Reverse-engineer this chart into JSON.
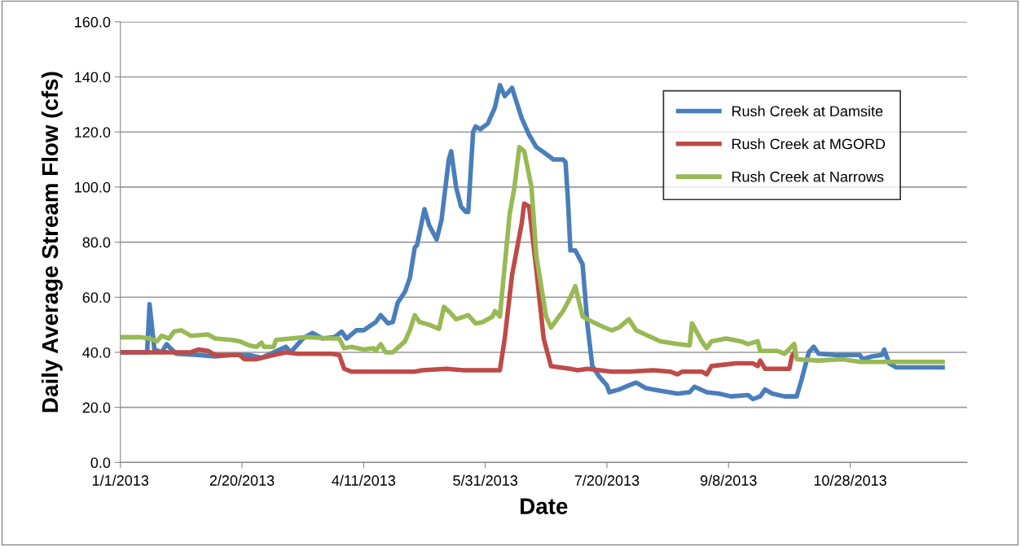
{
  "chart_data": {
    "type": "line",
    "xlabel": "Date",
    "ylabel": "Daily Average Stream Flow (cfs)",
    "xlim": [
      "2013-01-01",
      "2013-12-15"
    ],
    "xticks": [
      {
        "value": "2013-01-01",
        "label": "1/1/2013"
      },
      {
        "value": "2013-02-20",
        "label": "2/20/2013"
      },
      {
        "value": "2013-04-11",
        "label": "4/11/2013"
      },
      {
        "value": "2013-05-31",
        "label": "5/31/2013"
      },
      {
        "value": "2013-07-20",
        "label": "7/20/2013"
      },
      {
        "value": "2013-09-08",
        "label": "9/8/2013"
      },
      {
        "value": "2013-10-28",
        "label": "10/28/2013"
      }
    ],
    "ylim": [
      0,
      160
    ],
    "yticks": [
      {
        "value": 0,
        "label": "0.0"
      },
      {
        "value": 20,
        "label": "20.0"
      },
      {
        "value": 40,
        "label": "40.0"
      },
      {
        "value": 60,
        "label": "60.0"
      },
      {
        "value": 80,
        "label": "80.0"
      },
      {
        "value": 100,
        "label": "100.0"
      },
      {
        "value": 120,
        "label": "120.0"
      },
      {
        "value": 140,
        "label": "140.0"
      },
      {
        "value": 160,
        "label": "160.0"
      }
    ],
    "grid": "y",
    "legend": "top right",
    "marker": "none",
    "line_style": "solid",
    "series": [
      {
        "name": "Rush Creek at Damsite",
        "color": "#4a7ebb",
        "x": [
          "2013-01-01",
          "2013-01-12",
          "2013-01-13",
          "2013-01-15",
          "2013-01-18",
          "2013-01-20",
          "2013-01-21",
          "2013-01-24",
          "2013-02-02",
          "2013-02-09",
          "2013-02-16",
          "2013-02-23",
          "2013-02-28",
          "2013-03-05",
          "2013-03-10",
          "2013-03-12",
          "2013-03-17",
          "2013-03-21",
          "2013-03-25",
          "2013-03-30",
          "2013-04-02",
          "2013-04-04",
          "2013-04-08",
          "2013-04-11",
          "2013-04-16",
          "2013-04-18",
          "2013-04-21",
          "2013-04-23",
          "2013-04-25",
          "2013-04-28",
          "2013-04-30",
          "2013-05-02",
          "2013-05-03",
          "2013-05-06",
          "2013-05-08",
          "2013-05-11",
          "2013-05-13",
          "2013-05-16",
          "2013-05-17",
          "2013-05-19",
          "2013-05-21",
          "2013-05-23",
          "2013-05-24",
          "2013-05-26",
          "2013-05-27",
          "2013-05-29",
          "2013-06-01",
          "2013-06-04",
          "2013-06-06",
          "2013-06-08",
          "2013-06-11",
          "2013-06-15",
          "2013-06-18",
          "2013-06-21",
          "2013-06-25",
          "2013-06-28",
          "2013-07-02",
          "2013-07-03",
          "2013-07-04",
          "2013-07-05",
          "2013-07-07",
          "2013-07-10",
          "2013-07-12",
          "2013-07-14",
          "2013-07-17",
          "2013-07-20",
          "2013-07-21",
          "2013-07-25",
          "2013-07-29",
          "2013-08-01",
          "2013-08-05",
          "2013-08-11",
          "2013-08-18",
          "2013-08-23",
          "2013-08-25",
          "2013-08-30",
          "2013-09-04",
          "2013-09-09",
          "2013-09-16",
          "2013-09-18",
          "2013-09-21",
          "2013-09-23",
          "2013-09-26",
          "2013-10-01",
          "2013-10-06",
          "2013-10-08",
          "2013-10-11",
          "2013-10-13",
          "2013-10-15",
          "2013-10-22",
          "2013-11-01",
          "2013-11-02",
          "2013-11-06",
          "2013-11-10",
          "2013-11-11",
          "2013-11-13",
          "2013-11-16",
          "2013-11-25",
          "2013-12-05"
        ],
        "values": [
          40,
          40,
          57.5,
          41,
          40,
          43,
          42,
          39.5,
          39,
          38.5,
          39,
          39,
          38,
          40,
          42,
          40,
          45,
          47,
          45,
          45.5,
          47.5,
          45,
          48,
          48,
          51,
          53.5,
          50.5,
          51,
          58,
          62,
          67,
          78,
          79,
          92,
          86,
          81,
          88,
          110,
          113,
          100,
          93,
          91,
          91,
          120,
          122,
          121,
          123,
          129,
          137,
          133,
          136,
          125,
          119,
          114.5,
          112,
          110,
          110,
          109,
          95,
          77,
          77,
          72,
          50,
          35,
          31,
          28,
          25.5,
          26.5,
          28,
          29,
          27,
          26,
          25,
          25.5,
          27.5,
          25.5,
          25,
          24,
          24.5,
          23,
          24,
          26.5,
          25,
          24,
          24,
          30,
          40,
          42,
          39.5,
          39,
          39,
          37.5,
          38.5,
          39,
          41,
          36,
          34.5,
          34.5,
          34.5
        ]
      },
      {
        "name": "Rush Creek at MGORD",
        "color": "#be4b48",
        "x": [
          "2013-01-01",
          "2013-01-30",
          "2013-02-02",
          "2013-02-06",
          "2013-02-09",
          "2013-02-19",
          "2013-02-21",
          "2013-02-26",
          "2013-03-05",
          "2013-03-10",
          "2013-03-15",
          "2013-03-29",
          "2013-04-01",
          "2013-04-03",
          "2013-04-06",
          "2013-04-21",
          "2013-05-02",
          "2013-05-05",
          "2013-05-15",
          "2013-05-22",
          "2013-05-29",
          "2013-06-06",
          "2013-06-08",
          "2013-06-11",
          "2013-06-15",
          "2013-06-16",
          "2013-06-18",
          "2013-06-21",
          "2013-06-24",
          "2013-06-27",
          "2013-07-05",
          "2013-07-08",
          "2013-07-12",
          "2013-07-22",
          "2013-07-29",
          "2013-08-08",
          "2013-08-15",
          "2013-08-18",
          "2013-08-20",
          "2013-08-28",
          "2013-08-30",
          "2013-09-01",
          "2013-09-11",
          "2013-09-18",
          "2013-09-20",
          "2013-09-21",
          "2013-09-23",
          "2013-10-03",
          "2013-10-04",
          "2013-10-05"
        ],
        "values": [
          40,
          40,
          41,
          40.5,
          39,
          39,
          37.5,
          37.5,
          39,
          40,
          39.5,
          39.5,
          39,
          34,
          33,
          33,
          33,
          33.5,
          34,
          33.5,
          33.5,
          33.5,
          45,
          68,
          87,
          94,
          93,
          70,
          45,
          35,
          34,
          33.5,
          34,
          33,
          33,
          33.5,
          33,
          32,
          33,
          33,
          32,
          35,
          36,
          36,
          35,
          37,
          34,
          34,
          38.5,
          40
        ]
      },
      {
        "name": "Rush Creek at Narrows",
        "color": "#98b954",
        "x": [
          "2013-01-01",
          "2013-01-09",
          "2013-01-13",
          "2013-01-16",
          "2013-01-18",
          "2013-01-21",
          "2013-01-23",
          "2013-01-26",
          "2013-01-30",
          "2013-02-06",
          "2013-02-09",
          "2013-02-16",
          "2013-02-19",
          "2013-02-23",
          "2013-02-26",
          "2013-02-28",
          "2013-03-01",
          "2013-03-05",
          "2013-03-06",
          "2013-03-12",
          "2013-03-18",
          "2013-03-29",
          "2013-04-01",
          "2013-04-03",
          "2013-04-06",
          "2013-04-11",
          "2013-04-15",
          "2013-04-16",
          "2013-04-18",
          "2013-04-20",
          "2013-04-23",
          "2013-04-28",
          "2013-04-30",
          "2013-05-02",
          "2013-05-04",
          "2013-05-08",
          "2013-05-12",
          "2013-05-14",
          "2013-05-17",
          "2013-05-19",
          "2013-05-24",
          "2013-05-27",
          "2013-05-30",
          "2013-06-03",
          "2013-06-04",
          "2013-06-06",
          "2013-06-10",
          "2013-06-12",
          "2013-06-14",
          "2013-06-16",
          "2013-06-19",
          "2013-06-21",
          "2013-06-25",
          "2013-06-27",
          "2013-07-02",
          "2013-07-05",
          "2013-07-07",
          "2013-07-10",
          "2013-07-13",
          "2013-07-19",
          "2013-07-22",
          "2013-07-25",
          "2013-07-29",
          "2013-08-01",
          "2013-08-06",
          "2013-08-11",
          "2013-08-18",
          "2013-08-23",
          "2013-08-24",
          "2013-08-28",
          "2013-08-30",
          "2013-09-01",
          "2013-09-07",
          "2013-09-13",
          "2013-09-16",
          "2013-09-20",
          "2013-09-21",
          "2013-09-28",
          "2013-10-01",
          "2013-10-05",
          "2013-10-06",
          "2013-10-15",
          "2013-10-25",
          "2013-11-01",
          "2013-12-05"
        ],
        "values": [
          45.5,
          45.5,
          45,
          44,
          46,
          45,
          47.5,
          48,
          46,
          46.5,
          45,
          44.5,
          44,
          42.5,
          42,
          43.5,
          42,
          42,
          44.5,
          45,
          45.5,
          45,
          45,
          41.5,
          42,
          41,
          41.5,
          40.5,
          43,
          40,
          40,
          44,
          48,
          53.5,
          51,
          50,
          48.5,
          56.5,
          54,
          52,
          53.5,
          50.5,
          51,
          53,
          55,
          53,
          90,
          100,
          114.5,
          113,
          100,
          75,
          53,
          49,
          55,
          60,
          64,
          53,
          51.5,
          49,
          48,
          49,
          52,
          48,
          46,
          44,
          43,
          42.5,
          50.5,
          44,
          41.5,
          44,
          45,
          44,
          43,
          44,
          40.5,
          40.5,
          39.5,
          43,
          37.5,
          37,
          37.5,
          36.5,
          36.5
        ]
      }
    ]
  }
}
